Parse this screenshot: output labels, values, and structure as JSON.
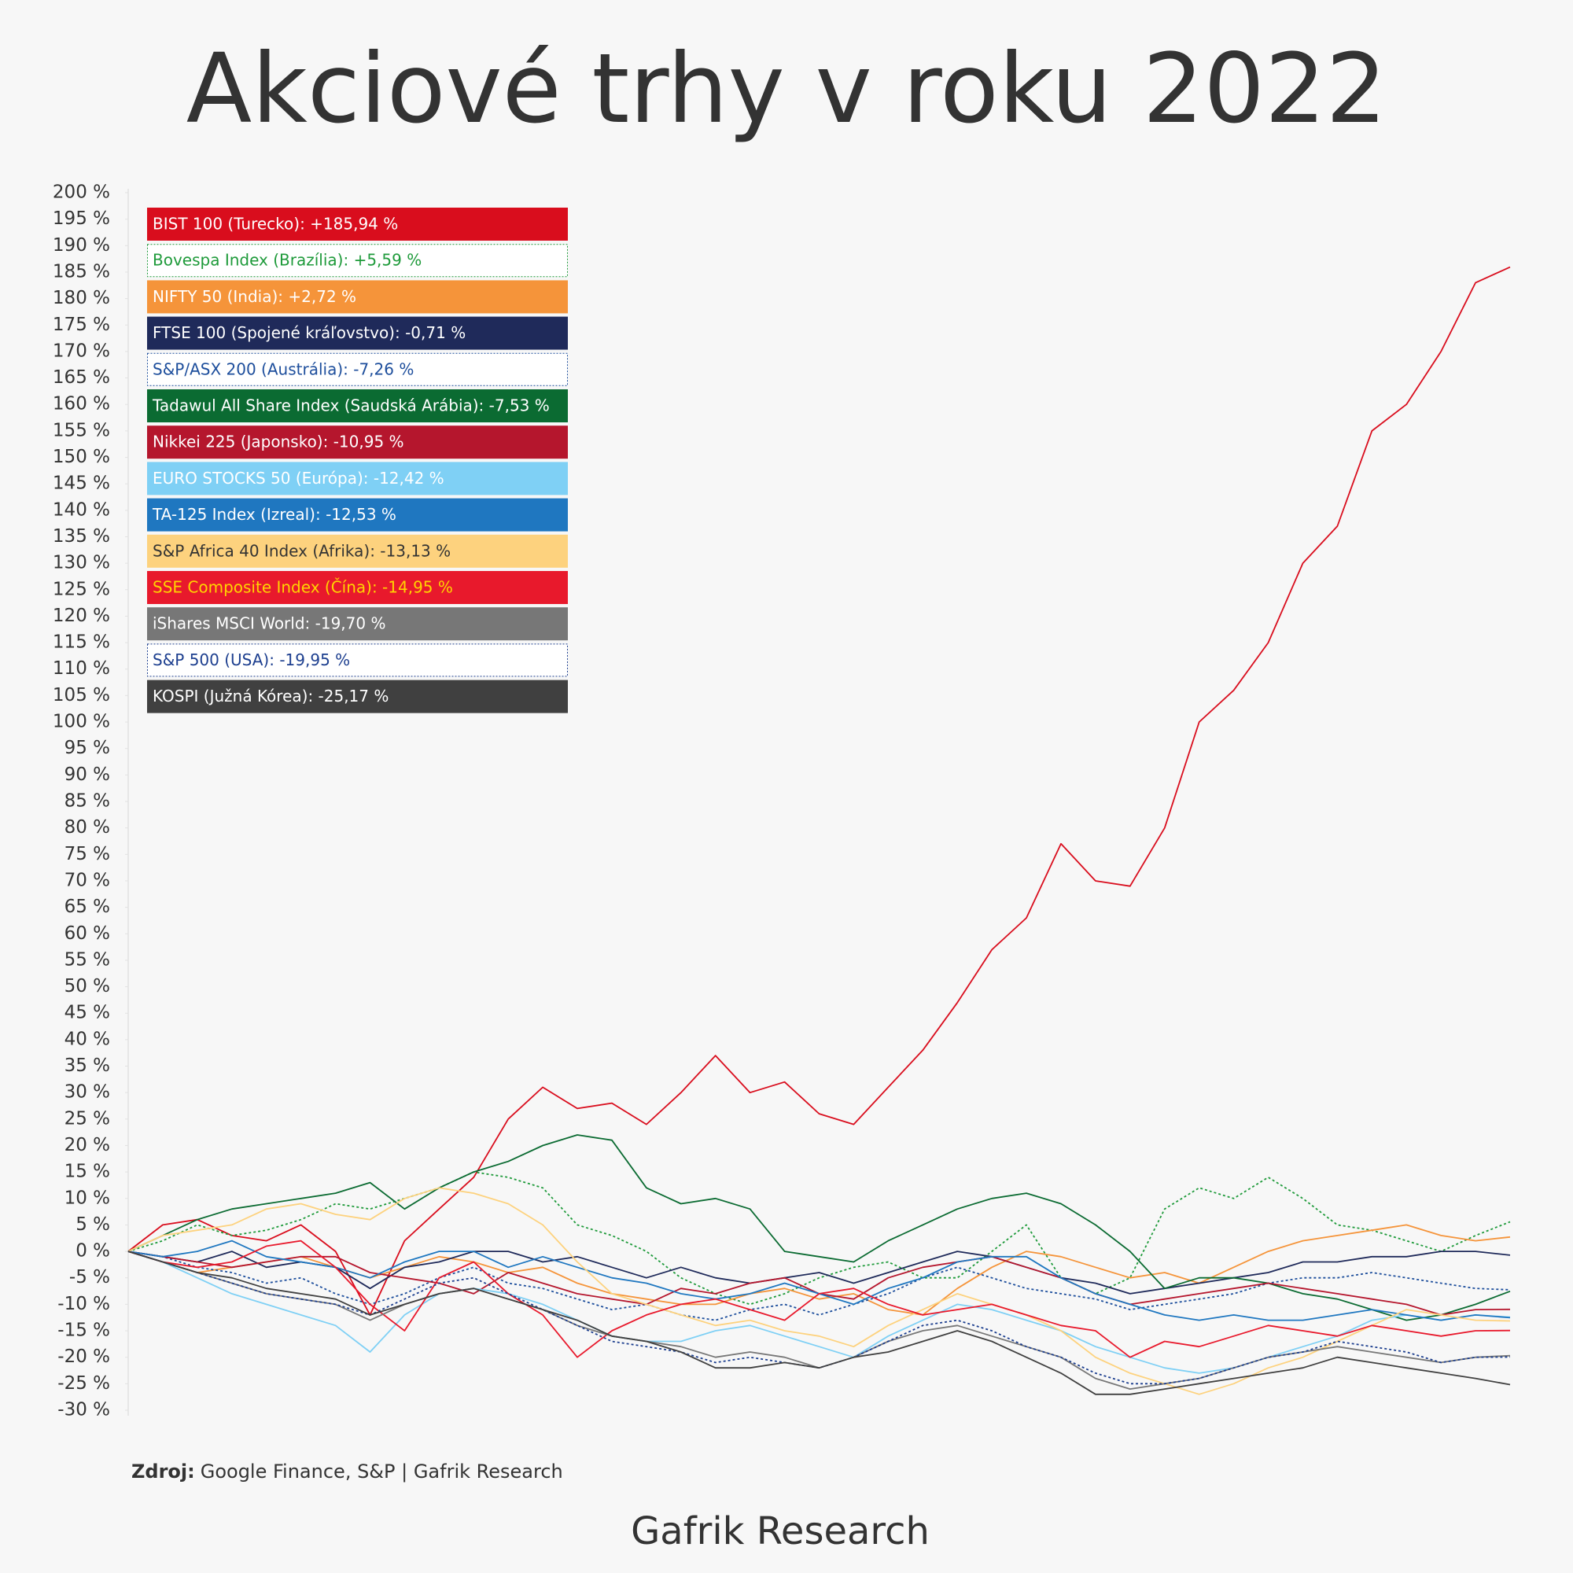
{
  "chart_data": {
    "type": "line",
    "title": "Akciové trhy v roku 2022",
    "source_label": "Zdroj:",
    "source": "Google Finance, S&P | Gafrik Research",
    "footer": "Gafrik Research",
    "ylim": [
      -30,
      200
    ],
    "yticks": [
      {
        "value": -30,
        "label": "-30 %"
      },
      {
        "value": -25,
        "label": "-25 %"
      },
      {
        "value": -20,
        "label": "-20 %"
      },
      {
        "value": -15,
        "label": "-15 %"
      },
      {
        "value": -10,
        "label": "-10 %"
      },
      {
        "value": -5,
        "label": "-5 %"
      },
      {
        "value": 0,
        "label": "0 %"
      },
      {
        "value": 5,
        "label": "5 %"
      },
      {
        "value": 10,
        "label": "10 %"
      },
      {
        "value": 15,
        "label": "15 %"
      },
      {
        "value": 20,
        "label": "20 %"
      },
      {
        "value": 25,
        "label": "25 %"
      },
      {
        "value": 30,
        "label": "30 %"
      },
      {
        "value": 35,
        "label": "35 %"
      },
      {
        "value": 40,
        "label": "40 %"
      },
      {
        "value": 45,
        "label": "45 %"
      },
      {
        "value": 50,
        "label": "50 %"
      },
      {
        "value": 55,
        "label": "55 %"
      },
      {
        "value": 60,
        "label": "60 %"
      },
      {
        "value": 65,
        "label": "65 %"
      },
      {
        "value": 70,
        "label": "70 %"
      },
      {
        "value": 75,
        "label": "75 %"
      },
      {
        "value": 80,
        "label": "80 %"
      },
      {
        "value": 85,
        "label": "85 %"
      },
      {
        "value": 90,
        "label": "90 %"
      },
      {
        "value": 95,
        "label": "95 %"
      },
      {
        "value": 100,
        "label": "100 %"
      },
      {
        "value": 105,
        "label": "105 %"
      },
      {
        "value": 110,
        "label": "110 %"
      },
      {
        "value": 115,
        "label": "115 %"
      },
      {
        "value": 120,
        "label": "120 %"
      },
      {
        "value": 125,
        "label": "125 %"
      },
      {
        "value": 130,
        "label": "130 %"
      },
      {
        "value": 135,
        "label": "135 %"
      },
      {
        "value": 140,
        "label": "140 %"
      },
      {
        "value": 145,
        "label": "145 %"
      },
      {
        "value": 150,
        "label": "150 %"
      },
      {
        "value": 155,
        "label": "155 %"
      },
      {
        "value": 160,
        "label": "160 %"
      },
      {
        "value": 165,
        "label": "165 %"
      },
      {
        "value": 170,
        "label": "170 %"
      },
      {
        "value": 175,
        "label": "175 %"
      },
      {
        "value": 180,
        "label": "180 %"
      },
      {
        "value": 185,
        "label": "185 %"
      },
      {
        "value": 190,
        "label": "190 %"
      },
      {
        "value": 195,
        "label": "195 %"
      },
      {
        "value": 200,
        "label": "200 %"
      }
    ],
    "series": [
      {
        "name": "BIST 100 (Turecko): +185,94 %",
        "color": "#d90d1d",
        "label_color": "#ffffff",
        "values": [
          0,
          5,
          6,
          3,
          2,
          5,
          0,
          -12,
          2,
          8,
          14,
          25,
          31,
          27,
          28,
          24,
          30,
          37,
          30,
          32,
          26,
          24,
          31,
          38,
          47,
          57,
          63,
          77,
          70,
          69,
          80,
          100,
          106,
          115,
          130,
          137,
          155,
          160,
          170,
          183,
          185.94
        ]
      },
      {
        "name": "Bovespa Index (Brazília): +5,59 %",
        "color": "#1e9a3a",
        "label_color": "#1e9a3a",
        "dashed": true,
        "values": [
          0,
          2,
          5,
          3,
          4,
          6,
          9,
          8,
          10,
          12,
          15,
          14,
          12,
          5,
          3,
          0,
          -5,
          -8,
          -10,
          -8,
          -5,
          -3,
          -2,
          -5,
          -5,
          0,
          5,
          -5,
          -8,
          -5,
          8,
          12,
          10,
          14,
          10,
          5,
          4,
          2,
          0,
          3,
          5.59
        ]
      },
      {
        "name": "NIFTY 50 (India): +2,72 %",
        "color": "#f5943a",
        "label_color": "#ffffff",
        "values": [
          0,
          -2,
          -4,
          -3,
          -2,
          -1,
          -3,
          -5,
          -3,
          -1,
          -2,
          -4,
          -3,
          -6,
          -8,
          -9,
          -10,
          -10,
          -8,
          -7,
          -9,
          -8,
          -11,
          -12,
          -7,
          -3,
          0,
          -1,
          -3,
          -5,
          -4,
          -6,
          -3,
          0,
          2,
          3,
          4,
          5,
          3,
          2,
          2.72
        ]
      },
      {
        "name": "FTSE 100 (Spojené kráľovstvo): -0,71 %",
        "color": "#1f2a5a",
        "label_color": "#ffffff",
        "values": [
          0,
          -1,
          -2,
          0,
          -3,
          -2,
          -3,
          -7,
          -3,
          -2,
          0,
          0,
          -2,
          -1,
          -3,
          -5,
          -3,
          -5,
          -6,
          -5,
          -4,
          -6,
          -4,
          -2,
          0,
          -1,
          -3,
          -5,
          -6,
          -8,
          -7,
          -6,
          -5,
          -4,
          -2,
          -2,
          -1,
          -1,
          0,
          0,
          -0.71
        ]
      },
      {
        "name": "S&P/ASX 200 (Austrália): -7,26 %",
        "color": "#1d4e9c",
        "label_color": "#1d4e9c",
        "dashed": true,
        "values": [
          0,
          -1,
          -3,
          -4,
          -6,
          -5,
          -8,
          -10,
          -8,
          -5,
          -3,
          -6,
          -7,
          -9,
          -11,
          -10,
          -12,
          -13,
          -11,
          -10,
          -12,
          -10,
          -8,
          -5,
          -3,
          -5,
          -7,
          -8,
          -9,
          -11,
          -10,
          -9,
          -8,
          -6,
          -5,
          -5,
          -4,
          -5,
          -6,
          -7,
          -7.26
        ]
      },
      {
        "name": "Tadawul All Share Index (Saudská Arábia): -7,53 %",
        "color": "#0b6b32",
        "label_color": "#ffffff",
        "values": [
          0,
          3,
          6,
          8,
          9,
          10,
          11,
          13,
          8,
          12,
          15,
          17,
          20,
          22,
          21,
          12,
          9,
          10,
          8,
          0,
          -1,
          -2,
          2,
          5,
          8,
          10,
          11,
          9,
          5,
          0,
          -7,
          -5,
          -5,
          -6,
          -8,
          -9,
          -11,
          -13,
          -12,
          -10,
          -7.53
        ]
      },
      {
        "name": "Nikkei 225 (Japonsko): -10,95 %",
        "color": "#b5162d",
        "label_color": "#ffffff",
        "values": [
          0,
          -1,
          -2,
          -3,
          -2,
          -1,
          -1,
          -4,
          -5,
          -6,
          -8,
          -4,
          -6,
          -8,
          -9,
          -10,
          -7,
          -8,
          -6,
          -5,
          -8,
          -9,
          -5,
          -3,
          -2,
          -1,
          -3,
          -5,
          -8,
          -10,
          -9,
          -8,
          -7,
          -6,
          -7,
          -8,
          -9,
          -10,
          -12,
          -11,
          -10.95
        ]
      },
      {
        "name": "EURO STOCKS 50 (Európa): -12,42 %",
        "color": "#7fd0f5",
        "label_color": "#ffffff",
        "values": [
          0,
          -2,
          -5,
          -8,
          -10,
          -12,
          -14,
          -19,
          -12,
          -8,
          -7,
          -8,
          -10,
          -13,
          -16,
          -17,
          -17,
          -15,
          -14,
          -16,
          -18,
          -20,
          -16,
          -13,
          -10,
          -11,
          -13,
          -15,
          -18,
          -20,
          -22,
          -23,
          -22,
          -20,
          -18,
          -16,
          -13,
          -12,
          -13,
          -12,
          -12.42
        ]
      },
      {
        "name": "TA-125 Index (Izreal): -12,53 %",
        "color": "#1f77c0",
        "label_color": "#ffffff",
        "values": [
          0,
          -1,
          0,
          2,
          -1,
          -2,
          -3,
          -5,
          -2,
          0,
          0,
          -3,
          -1,
          -3,
          -5,
          -6,
          -8,
          -9,
          -8,
          -6,
          -8,
          -10,
          -7,
          -5,
          -2,
          -1,
          -1,
          -5,
          -8,
          -10,
          -12,
          -13,
          -12,
          -13,
          -13,
          -12,
          -11,
          -12,
          -13,
          -12,
          -12.53
        ]
      },
      {
        "name": "S&P Africa 40 Index (Afrika): -13,13 %",
        "color": "#fdd27e",
        "label_color": "#333333",
        "values": [
          0,
          3,
          4,
          5,
          8,
          9,
          7,
          6,
          10,
          12,
          11,
          9,
          5,
          -2,
          -8,
          -10,
          -12,
          -14,
          -13,
          -15,
          -16,
          -18,
          -14,
          -11,
          -8,
          -10,
          -12,
          -15,
          -20,
          -23,
          -25,
          -27,
          -25,
          -22,
          -20,
          -17,
          -14,
          -11,
          -12,
          -13,
          -13.13
        ]
      },
      {
        "name": "SSE Composite Index (Čína): -14,95 %",
        "color": "#e8192c",
        "label_color": "#ffd400",
        "values": [
          0,
          -2,
          -3,
          -2,
          1,
          2,
          -3,
          -10,
          -15,
          -5,
          -2,
          -8,
          -12,
          -20,
          -15,
          -12,
          -10,
          -9,
          -11,
          -13,
          -8,
          -7,
          -10,
          -12,
          -11,
          -10,
          -12,
          -14,
          -15,
          -20,
          -17,
          -18,
          -16,
          -14,
          -15,
          -16,
          -14,
          -15,
          -16,
          -15,
          -14.95
        ]
      },
      {
        "name": "iShares MSCI World: -19,70 %",
        "color": "#777777",
        "label_color": "#ffffff",
        "values": [
          0,
          -2,
          -4,
          -6,
          -8,
          -9,
          -10,
          -13,
          -10,
          -8,
          -7,
          -9,
          -11,
          -14,
          -16,
          -17,
          -18,
          -20,
          -19,
          -20,
          -22,
          -20,
          -17,
          -15,
          -14,
          -16,
          -18,
          -20,
          -24,
          -26,
          -25,
          -24,
          -22,
          -20,
          -19,
          -18,
          -19,
          -20,
          -21,
          -20,
          -19.7
        ]
      },
      {
        "name": "S&P 500 (USA): -19,95 %",
        "color": "#1d3f8f",
        "label_color": "#1d3f8f",
        "dashed": true,
        "values": [
          0,
          -2,
          -4,
          -6,
          -8,
          -9,
          -10,
          -12,
          -9,
          -6,
          -5,
          -8,
          -11,
          -14,
          -17,
          -18,
          -19,
          -21,
          -20,
          -21,
          -22,
          -20,
          -17,
          -14,
          -13,
          -15,
          -18,
          -20,
          -23,
          -25,
          -25,
          -24,
          -22,
          -20,
          -19,
          -17,
          -18,
          -19,
          -21,
          -20,
          -19.95
        ]
      },
      {
        "name": "KOSPI (Južná Kórea): -25,17 %",
        "color": "#404040",
        "label_color": "#ffffff",
        "values": [
          0,
          -2,
          -4,
          -5,
          -7,
          -8,
          -9,
          -12,
          -10,
          -8,
          -7,
          -9,
          -11,
          -13,
          -16,
          -17,
          -19,
          -22,
          -22,
          -21,
          -22,
          -20,
          -19,
          -17,
          -15,
          -17,
          -20,
          -23,
          -27,
          -27,
          -26,
          -25,
          -24,
          -23,
          -22,
          -20,
          -21,
          -22,
          -23,
          -24,
          -25.17
        ]
      }
    ]
  }
}
